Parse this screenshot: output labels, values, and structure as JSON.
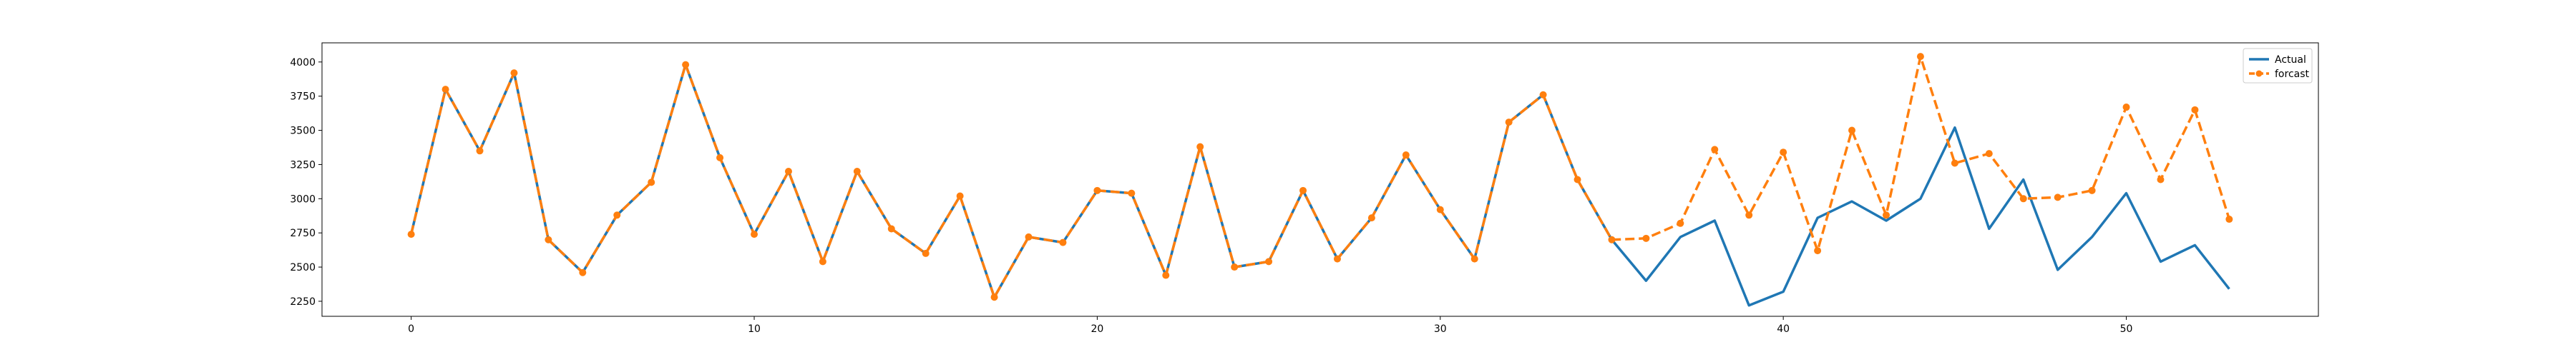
{
  "chart_data": {
    "type": "line",
    "title": "",
    "xlabel": "",
    "ylabel": "",
    "xlim": [
      -2.6,
      55.6
    ],
    "ylim": [
      2140,
      4140
    ],
    "x_ticks": [
      0,
      10,
      20,
      30,
      40,
      50
    ],
    "x_tick_labels": [
      "0",
      "10",
      "20",
      "30",
      "40",
      "50"
    ],
    "y_ticks": [
      2250,
      2500,
      2750,
      3000,
      3250,
      3500,
      3750,
      4000
    ],
    "y_tick_labels": [
      "2250",
      "2500",
      "2750",
      "3000",
      "3250",
      "3500",
      "3750",
      "4000"
    ],
    "grid": false,
    "legend_position": "top-right",
    "series": [
      {
        "name": "Actual",
        "color": "#1f77b4",
        "style": "solid",
        "marker": "none",
        "x": [
          0,
          1,
          2,
          3,
          4,
          5,
          6,
          7,
          8,
          9,
          10,
          11,
          12,
          13,
          14,
          15,
          16,
          17,
          18,
          19,
          20,
          21,
          22,
          23,
          24,
          25,
          26,
          27,
          28,
          29,
          30,
          31,
          32,
          33,
          34,
          35,
          36,
          37,
          38,
          39,
          40,
          41,
          42,
          43,
          44,
          45,
          46,
          47,
          48,
          49,
          50,
          51,
          52,
          53
        ],
        "values": [
          2740,
          3800,
          3350,
          3920,
          2700,
          2460,
          2880,
          3120,
          3980,
          3300,
          2740,
          3200,
          2540,
          3200,
          2780,
          2600,
          3020,
          2280,
          2720,
          2680,
          3060,
          3040,
          2440,
          3380,
          2500,
          2540,
          3060,
          2560,
          2860,
          3320,
          2920,
          2560,
          3560,
          3760,
          3140,
          2700,
          2400,
          2720,
          2840,
          2220,
          2320,
          2860,
          2980,
          2840,
          3000,
          3520,
          2780,
          3140,
          2480,
          2720,
          3040,
          2540,
          2660,
          2340
        ]
      },
      {
        "name": "forcast",
        "color": "#ff7f0e",
        "style": "dashed",
        "marker": "circle",
        "x": [
          0,
          1,
          2,
          3,
          4,
          5,
          6,
          7,
          8,
          9,
          10,
          11,
          12,
          13,
          14,
          15,
          16,
          17,
          18,
          19,
          20,
          21,
          22,
          23,
          24,
          25,
          26,
          27,
          28,
          29,
          30,
          31,
          32,
          33,
          34,
          35,
          36,
          37,
          38,
          39,
          40,
          41,
          42,
          43,
          44,
          45,
          46,
          47,
          48,
          49,
          50,
          51,
          52,
          53
        ],
        "values": [
          2740,
          3800,
          3350,
          3920,
          2700,
          2460,
          2880,
          3120,
          3980,
          3300,
          2740,
          3200,
          2540,
          3200,
          2780,
          2600,
          3020,
          2280,
          2720,
          2680,
          3060,
          3040,
          2440,
          3380,
          2500,
          2540,
          3060,
          2560,
          2860,
          3320,
          2920,
          2560,
          3560,
          3760,
          3140,
          2700,
          2710,
          2820,
          3360,
          2880,
          3340,
          2620,
          3500,
          2880,
          4040,
          3260,
          3330,
          3000,
          3010,
          3060,
          3670,
          3140,
          3650,
          2850
        ]
      }
    ]
  }
}
